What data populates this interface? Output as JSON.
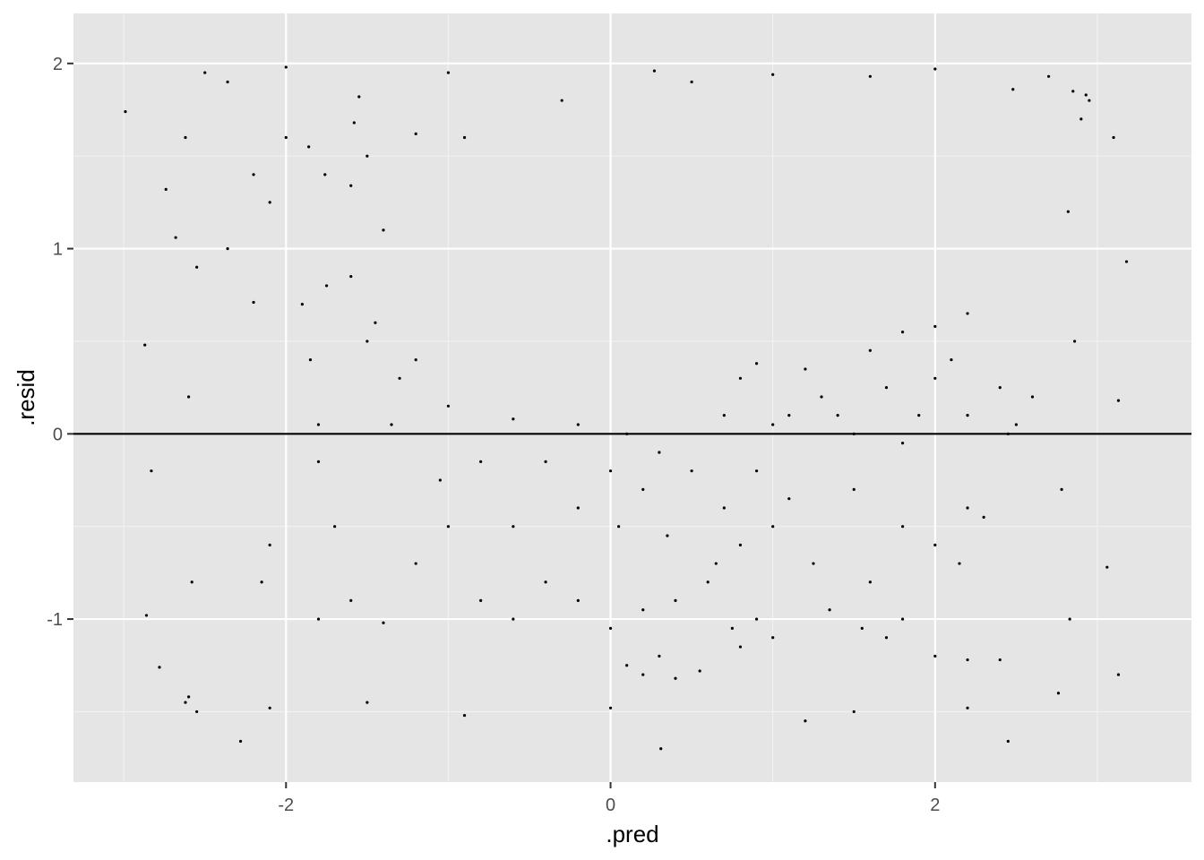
{
  "colors": {
    "panel_background": "#e5e5e5",
    "grid_major": "#ffffff",
    "grid_minor": "#f2f2f2",
    "points": "#000000",
    "reference_line": "#000000",
    "tick_text": "#4d4d4d",
    "axis_title_text": "#000000"
  },
  "chart_data": {
    "type": "scatter",
    "xlabel": ".pred",
    "ylabel": ".resid",
    "xlim": [
      -3.31,
      3.58
    ],
    "ylim": [
      -1.88,
      2.27
    ],
    "x_ticks": [
      -2,
      0,
      2
    ],
    "x_tick_labels": [
      "-2",
      "0",
      "2"
    ],
    "y_ticks": [
      -1,
      0,
      1,
      2
    ],
    "y_tick_labels": [
      "-1",
      "0",
      "1",
      "2"
    ],
    "x_minor_ticks": [
      -3,
      -1,
      1,
      3
    ],
    "y_minor_ticks": [
      -1.5,
      -0.5,
      0.5,
      1.5
    ],
    "grid": true,
    "legend": "none",
    "reference_lines": [
      {
        "axis": "y",
        "value": 0
      }
    ],
    "series": [
      {
        "marker": "dot",
        "points": [
          [
            -2.99,
            1.74
          ],
          [
            -2.78,
            -1.26
          ],
          [
            -2.68,
            1.06
          ],
          [
            -2.36,
            1.9
          ],
          [
            -1.55,
            1.82
          ],
          [
            -0.3,
            1.8
          ],
          [
            0.27,
            1.96
          ],
          [
            1.6,
            1.93
          ],
          [
            2.48,
            1.86
          ],
          [
            2.93,
            1.83
          ],
          [
            3.1,
            1.6
          ],
          [
            3.18,
            0.93
          ],
          [
            3.13,
            0.18
          ],
          [
            3.06,
            -0.72
          ],
          [
            3.13,
            -1.3
          ],
          [
            2.45,
            -1.66
          ],
          [
            1.2,
            -1.55
          ],
          [
            0.31,
            -1.7
          ],
          [
            -0.9,
            -1.52
          ],
          [
            -2.28,
            -1.66
          ],
          [
            -2.6,
            -1.42
          ],
          [
            -2.86,
            -0.98
          ],
          [
            -2.83,
            -0.2
          ],
          [
            -2.87,
            0.48
          ],
          [
            -2.74,
            1.32
          ],
          [
            -2.5,
            1.95
          ],
          [
            -2.0,
            1.98
          ],
          [
            -1.0,
            1.95
          ],
          [
            0.5,
            1.9
          ],
          [
            1.0,
            1.94
          ],
          [
            2.0,
            1.97
          ],
          [
            2.7,
            1.93
          ],
          [
            2.85,
            1.85
          ],
          [
            2.95,
            1.8
          ],
          [
            2.9,
            1.7
          ],
          [
            2.82,
            1.2
          ],
          [
            2.86,
            0.5
          ],
          [
            2.78,
            -0.3
          ],
          [
            2.83,
            -1.0
          ],
          [
            2.76,
            -1.4
          ],
          [
            2.2,
            -1.48
          ],
          [
            1.5,
            -1.5
          ],
          [
            0.0,
            -1.48
          ],
          [
            -1.5,
            -1.45
          ],
          [
            -2.1,
            -1.48
          ],
          [
            -2.55,
            -1.5
          ],
          [
            -2.62,
            -1.45
          ],
          [
            -2.58,
            -0.8
          ],
          [
            -2.6,
            0.2
          ],
          [
            -2.55,
            0.9
          ],
          [
            -2.62,
            1.6
          ],
          [
            -1.86,
            1.55
          ],
          [
            -1.76,
            1.4
          ],
          [
            -1.6,
            1.34
          ],
          [
            -1.5,
            1.5
          ],
          [
            -1.58,
            1.68
          ],
          [
            -1.2,
            1.62
          ],
          [
            -0.9,
            1.6
          ],
          [
            -2.0,
            1.6
          ],
          [
            -2.2,
            1.4
          ],
          [
            -2.36,
            1.0
          ],
          [
            -2.1,
            1.25
          ],
          [
            -2.2,
            0.71
          ],
          [
            -1.9,
            0.7
          ],
          [
            -1.75,
            0.8
          ],
          [
            -1.85,
            0.4
          ],
          [
            -1.8,
            0.05
          ],
          [
            -1.5,
            0.5
          ],
          [
            -1.3,
            0.3
          ],
          [
            -1.0,
            0.15
          ],
          [
            -0.6,
            0.08
          ],
          [
            -0.2,
            0.05
          ],
          [
            0.1,
            0.0
          ],
          [
            0.3,
            -0.1
          ],
          [
            -0.4,
            -0.15
          ],
          [
            0.0,
            -0.2
          ],
          [
            -1.8,
            -0.15
          ],
          [
            -1.7,
            -0.5
          ],
          [
            -1.6,
            -0.9
          ],
          [
            -1.8,
            -1.0
          ],
          [
            -1.4,
            -1.02
          ],
          [
            -1.2,
            -0.7
          ],
          [
            -1.0,
            -0.5
          ],
          [
            -2.15,
            -0.8
          ],
          [
            -2.1,
            -0.6
          ],
          [
            -0.8,
            -0.9
          ],
          [
            -0.6,
            -1.0
          ],
          [
            -0.4,
            -0.8
          ],
          [
            -0.2,
            -0.9
          ],
          [
            0.0,
            -1.05
          ],
          [
            0.2,
            -0.95
          ],
          [
            -0.6,
            -0.5
          ],
          [
            -0.2,
            -0.4
          ],
          [
            0.2,
            -0.3
          ],
          [
            0.4,
            -0.9
          ],
          [
            0.6,
            -0.8
          ],
          [
            0.5,
            -0.2
          ],
          [
            0.7,
            -0.4
          ],
          [
            0.8,
            -0.6
          ],
          [
            0.9,
            -0.2
          ],
          [
            1.0,
            -0.5
          ],
          [
            0.9,
            -1.0
          ],
          [
            1.0,
            -1.1
          ],
          [
            0.8,
            -1.15
          ],
          [
            1.1,
            0.1
          ],
          [
            1.3,
            0.2
          ],
          [
            1.5,
            -0.3
          ],
          [
            1.8,
            -0.5
          ],
          [
            2.0,
            -0.6
          ],
          [
            2.2,
            -0.4
          ],
          [
            2.3,
            -0.45
          ],
          [
            2.15,
            -0.7
          ],
          [
            1.6,
            -0.8
          ],
          [
            1.8,
            -1.0
          ],
          [
            2.0,
            -1.2
          ],
          [
            2.2,
            -1.22
          ],
          [
            2.4,
            -1.22
          ],
          [
            1.7,
            -1.1
          ],
          [
            0.8,
            0.3
          ],
          [
            0.9,
            0.38
          ],
          [
            1.0,
            0.05
          ],
          [
            0.7,
            0.1
          ],
          [
            1.2,
            0.35
          ],
          [
            1.4,
            0.1
          ],
          [
            1.6,
            0.45
          ],
          [
            1.8,
            0.55
          ],
          [
            2.0,
            0.58
          ],
          [
            2.2,
            0.65
          ],
          [
            2.1,
            0.4
          ],
          [
            2.0,
            0.3
          ],
          [
            1.9,
            0.1
          ],
          [
            2.4,
            0.25
          ],
          [
            2.5,
            0.05
          ],
          [
            2.6,
            0.2
          ],
          [
            2.45,
            0.0
          ],
          [
            2.2,
            0.1
          ],
          [
            1.7,
            0.25
          ],
          [
            1.5,
            0.0
          ],
          [
            1.8,
            -0.05
          ],
          [
            0.1,
            -1.25
          ],
          [
            0.2,
            -1.3
          ],
          [
            0.3,
            -1.2
          ],
          [
            0.4,
            -1.32
          ],
          [
            0.55,
            -1.28
          ],
          [
            -1.4,
            1.1
          ],
          [
            -1.6,
            0.85
          ],
          [
            -1.45,
            0.6
          ],
          [
            -1.2,
            0.4
          ],
          [
            -1.35,
            0.05
          ],
          [
            -1.05,
            -0.25
          ],
          [
            -0.8,
            -0.15
          ],
          [
            0.05,
            -0.5
          ],
          [
            0.35,
            -0.55
          ],
          [
            1.25,
            -0.7
          ],
          [
            1.35,
            -0.95
          ],
          [
            1.55,
            -1.05
          ],
          [
            0.65,
            -0.7
          ],
          [
            0.75,
            -1.05
          ],
          [
            1.1,
            -0.35
          ]
        ]
      }
    ]
  }
}
